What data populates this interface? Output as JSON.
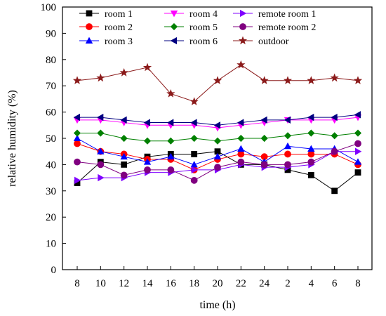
{
  "chart_data": {
    "type": "line",
    "xlabel": "time (h)",
    "ylabel": "relative humidity (%)",
    "ylim": [
      0,
      100
    ],
    "yticks": [
      0,
      10,
      20,
      30,
      40,
      50,
      60,
      70,
      80,
      90,
      100
    ],
    "categories": [
      "8",
      "10",
      "12",
      "14",
      "16",
      "18",
      "20",
      "22",
      "24",
      "2",
      "4",
      "6",
      "8"
    ],
    "grid": false,
    "legend_position": "top",
    "series": [
      {
        "name": "room 1",
        "color": "#000000",
        "marker": "square",
        "values": [
          33,
          41,
          40,
          43,
          44,
          44,
          45,
          40,
          40,
          38,
          36,
          30,
          37
        ]
      },
      {
        "name": "room 2",
        "color": "#ff0000",
        "marker": "circle",
        "values": [
          48,
          45,
          44,
          42,
          42,
          38,
          42,
          44,
          43,
          44,
          44,
          44,
          40
        ]
      },
      {
        "name": "room 3",
        "color": "#0000ff",
        "marker": "triangle-up",
        "values": [
          50,
          45,
          43,
          41,
          43,
          40,
          43,
          46,
          41,
          47,
          46,
          46,
          41
        ]
      },
      {
        "name": "room 4",
        "color": "#ff00ff",
        "marker": "triangle-down",
        "values": [
          57,
          57,
          56,
          55,
          55,
          55,
          54,
          55,
          56,
          57,
          57,
          57,
          58
        ]
      },
      {
        "name": "room 5",
        "color": "#008000",
        "marker": "diamond",
        "values": [
          52,
          52,
          50,
          49,
          49,
          50,
          49,
          50,
          50,
          51,
          52,
          51,
          52
        ]
      },
      {
        "name": "room 6",
        "color": "#000080",
        "marker": "triangle-left",
        "values": [
          58,
          58,
          57,
          56,
          56,
          56,
          55,
          56,
          57,
          57,
          58,
          58,
          59
        ]
      },
      {
        "name": "remote room 1",
        "color": "#8000ff",
        "marker": "triangle-right",
        "values": [
          34,
          35,
          35,
          37,
          37,
          38,
          38,
          40,
          39,
          39,
          40,
          45,
          45
        ]
      },
      {
        "name": "remote room 2",
        "color": "#800080",
        "marker": "circle",
        "values": [
          41,
          40,
          36,
          38,
          38,
          34,
          39,
          41,
          40,
          40,
          41,
          45,
          48
        ]
      },
      {
        "name": "outdoor",
        "color": "#8b1a1a",
        "marker": "star",
        "values": [
          72,
          73,
          75,
          77,
          67,
          64,
          72,
          78,
          72,
          72,
          72,
          73,
          72
        ]
      }
    ]
  }
}
